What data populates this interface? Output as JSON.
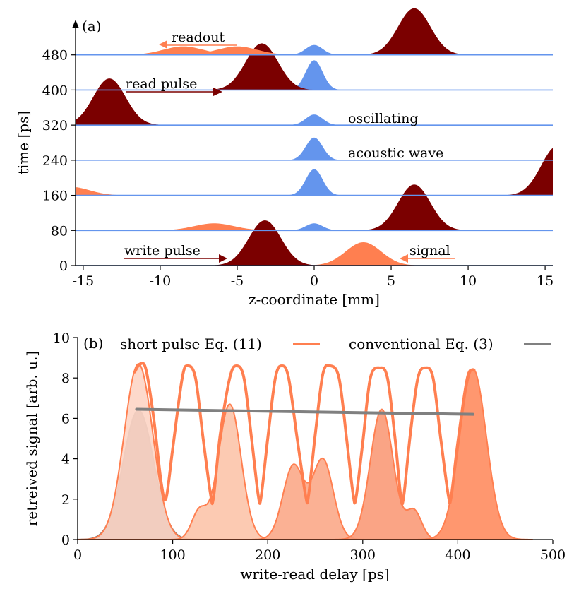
{
  "chart_data": [
    {
      "type": "area",
      "panel_label": "(a)",
      "xlabel": "z-coordinate [mm]",
      "ylabel": "time [ps]",
      "xlim": [
        -15.5,
        15.5
      ],
      "ylim": [
        0,
        560
      ],
      "x_ticks": [
        -15,
        -10,
        -5,
        0,
        5,
        10,
        15
      ],
      "x_tick_labels": [
        "-15",
        "-10",
        "-5",
        "0",
        "5",
        "10",
        "15"
      ],
      "y_ticks": [
        0,
        80,
        160,
        240,
        320,
        400,
        480
      ],
      "y_tick_labels": [
        "0",
        "80",
        "160",
        "240",
        "320",
        "400",
        "480"
      ],
      "colors": {
        "acoustic": "#6495ED",
        "optical": "#7B0000",
        "signal": "#FF7F50"
      },
      "rows": [
        {
          "time": 0,
          "peaks": [
            {
              "kind": "optical",
              "center": -3.2,
              "amp": 64,
              "width": 1.05
            },
            {
              "kind": "signal",
              "center": 3.2,
              "amp": 33,
              "width": 1.15
            }
          ]
        },
        {
          "time": 80,
          "peaks": [
            {
              "kind": "signal",
              "center": -6.5,
              "amp": 10,
              "width": 1.3
            },
            {
              "kind": "acoustic",
              "center": 0,
              "amp": 10,
              "width": 0.55
            },
            {
              "kind": "optical",
              "center": 6.5,
              "amp": 65,
              "width": 1.05
            }
          ]
        },
        {
          "time": 160,
          "peaks": [
            {
              "kind": "signal",
              "center": -15.8,
              "amp": 12,
              "width": 1.2
            },
            {
              "kind": "acoustic",
              "center": 0,
              "amp": 37,
              "width": 0.55
            },
            {
              "kind": "optical",
              "center": 15.8,
              "amp": 70,
              "width": 1.05
            }
          ]
        },
        {
          "time": 240,
          "peaks": [
            {
              "kind": "acoustic",
              "center": 0,
              "amp": 32,
              "width": 0.55
            }
          ]
        },
        {
          "time": 320,
          "peaks": [
            {
              "kind": "acoustic",
              "center": 0,
              "amp": 15,
              "width": 0.55
            },
            {
              "kind": "optical",
              "center": -13.3,
              "amp": 66,
              "width": 1.05
            }
          ]
        },
        {
          "time": 400,
          "peaks": [
            {
              "kind": "acoustic",
              "center": 0,
              "amp": 42,
              "width": 0.55
            },
            {
              "kind": "optical",
              "center": -3.4,
              "amp": 66,
              "width": 1.05
            }
          ]
        },
        {
          "time": 480,
          "peaks": [
            {
              "kind": "signal",
              "center": -8.5,
              "amp": 12,
              "width": 1.3
            },
            {
              "kind": "signal",
              "center": -5.0,
              "amp": 12,
              "width": 1.3
            },
            {
              "kind": "acoustic",
              "center": 0,
              "amp": 14,
              "width": 0.55
            },
            {
              "kind": "optical",
              "center": 6.5,
              "amp": 66,
              "width": 1.05
            }
          ]
        }
      ],
      "annotations": [
        {
          "text": "readout",
          "kind": "signal",
          "arrow": "left"
        },
        {
          "text": "read pulse",
          "kind": "optical",
          "arrow": "right"
        },
        {
          "text": "oscillating",
          "kind": "acoustic",
          "arrow": "none"
        },
        {
          "text": "acoustic wave",
          "kind": "acoustic",
          "arrow": "none"
        },
        {
          "text": "write pulse",
          "kind": "optical",
          "arrow": "right"
        },
        {
          "text": "signal",
          "kind": "signal",
          "arrow": "left"
        }
      ]
    },
    {
      "type": "line",
      "panel_label": "(b)",
      "xlabel": "write-read delay [ps]",
      "ylabel": "retreived signal [arb. u.]",
      "xlim": [
        0,
        500
      ],
      "ylim": [
        0,
        10
      ],
      "x_ticks": [
        0,
        100,
        200,
        300,
        400,
        500
      ],
      "x_tick_labels": [
        "0",
        "100",
        "200",
        "300",
        "400",
        "500"
      ],
      "y_ticks": [
        0,
        2,
        4,
        6,
        8,
        10
      ],
      "y_tick_labels": [
        "0",
        "2",
        "4",
        "6",
        "8",
        "10"
      ],
      "legend": [
        {
          "label": "short pulse Eq. (11)",
          "color": "#FF7F50"
        },
        {
          "label": "conventional Eq. (3)",
          "color": "#808080"
        }
      ],
      "series": [
        {
          "name": "short pulse Eq. (11)",
          "color": "#FF7F50",
          "x": [
            60,
            66,
            72,
            80,
            88,
            93,
            100,
            110,
            116,
            124,
            132,
            140,
            143,
            150,
            160,
            167,
            175,
            183,
            190,
            193,
            200,
            208,
            215,
            222,
            231,
            240,
            243,
            250,
            258,
            266,
            275,
            283,
            290,
            293,
            300,
            308,
            318,
            326,
            334,
            340,
            343,
            350,
            358,
            366,
            374,
            382,
            390,
            393,
            400,
            410,
            417
          ],
          "y": [
            8.3,
            8.7,
            8.4,
            6.0,
            2.8,
            2.05,
            4.5,
            8.0,
            8.6,
            8.0,
            5.0,
            2.2,
            2.1,
            5.2,
            8.0,
            8.6,
            8.0,
            5.0,
            2.2,
            2.1,
            5.0,
            8.0,
            8.6,
            8.0,
            5.0,
            2.15,
            2.2,
            5.2,
            8.2,
            8.6,
            8.0,
            5.0,
            2.2,
            2.1,
            4.8,
            8.0,
            8.5,
            8.0,
            5.0,
            2.15,
            2.1,
            5.2,
            8.0,
            8.5,
            8.0,
            5.0,
            2.2,
            2.1,
            4.8,
            8.0,
            8.4
          ]
        },
        {
          "name": "conventional Eq. (3)",
          "color": "#808080",
          "x": [
            62,
            416
          ],
          "y": [
            6.45,
            6.2
          ]
        }
      ],
      "filled_curves": [
        {
          "color": "#8B7D7B",
          "components": [
            {
              "center": 64,
              "amp": 6.4,
              "width": 16
            }
          ]
        },
        {
          "color": "#FDD5C5",
          "components": [
            {
              "center": 64,
              "amp": 8.7,
              "width": 15
            }
          ]
        },
        {
          "color": "#FCC4AA",
          "components": [
            {
              "center": 160,
              "amp": 6.7,
              "width": 12
            },
            {
              "center": 128,
              "amp": 1.4,
              "width": 8
            }
          ]
        },
        {
          "color": "#FBA888",
          "components": [
            {
              "center": 227,
              "amp": 3.65,
              "width": 11
            },
            {
              "center": 258,
              "amp": 3.95,
              "width": 11
            }
          ]
        },
        {
          "color": "#F99A78",
          "components": [
            {
              "center": 320,
              "amp": 6.45,
              "width": 12
            },
            {
              "center": 354,
              "amp": 1.4,
              "width": 8
            }
          ]
        },
        {
          "color": "#FF8C5F",
          "components": [
            {
              "center": 416,
              "amp": 8.45,
              "width": 14
            }
          ]
        }
      ]
    }
  ]
}
